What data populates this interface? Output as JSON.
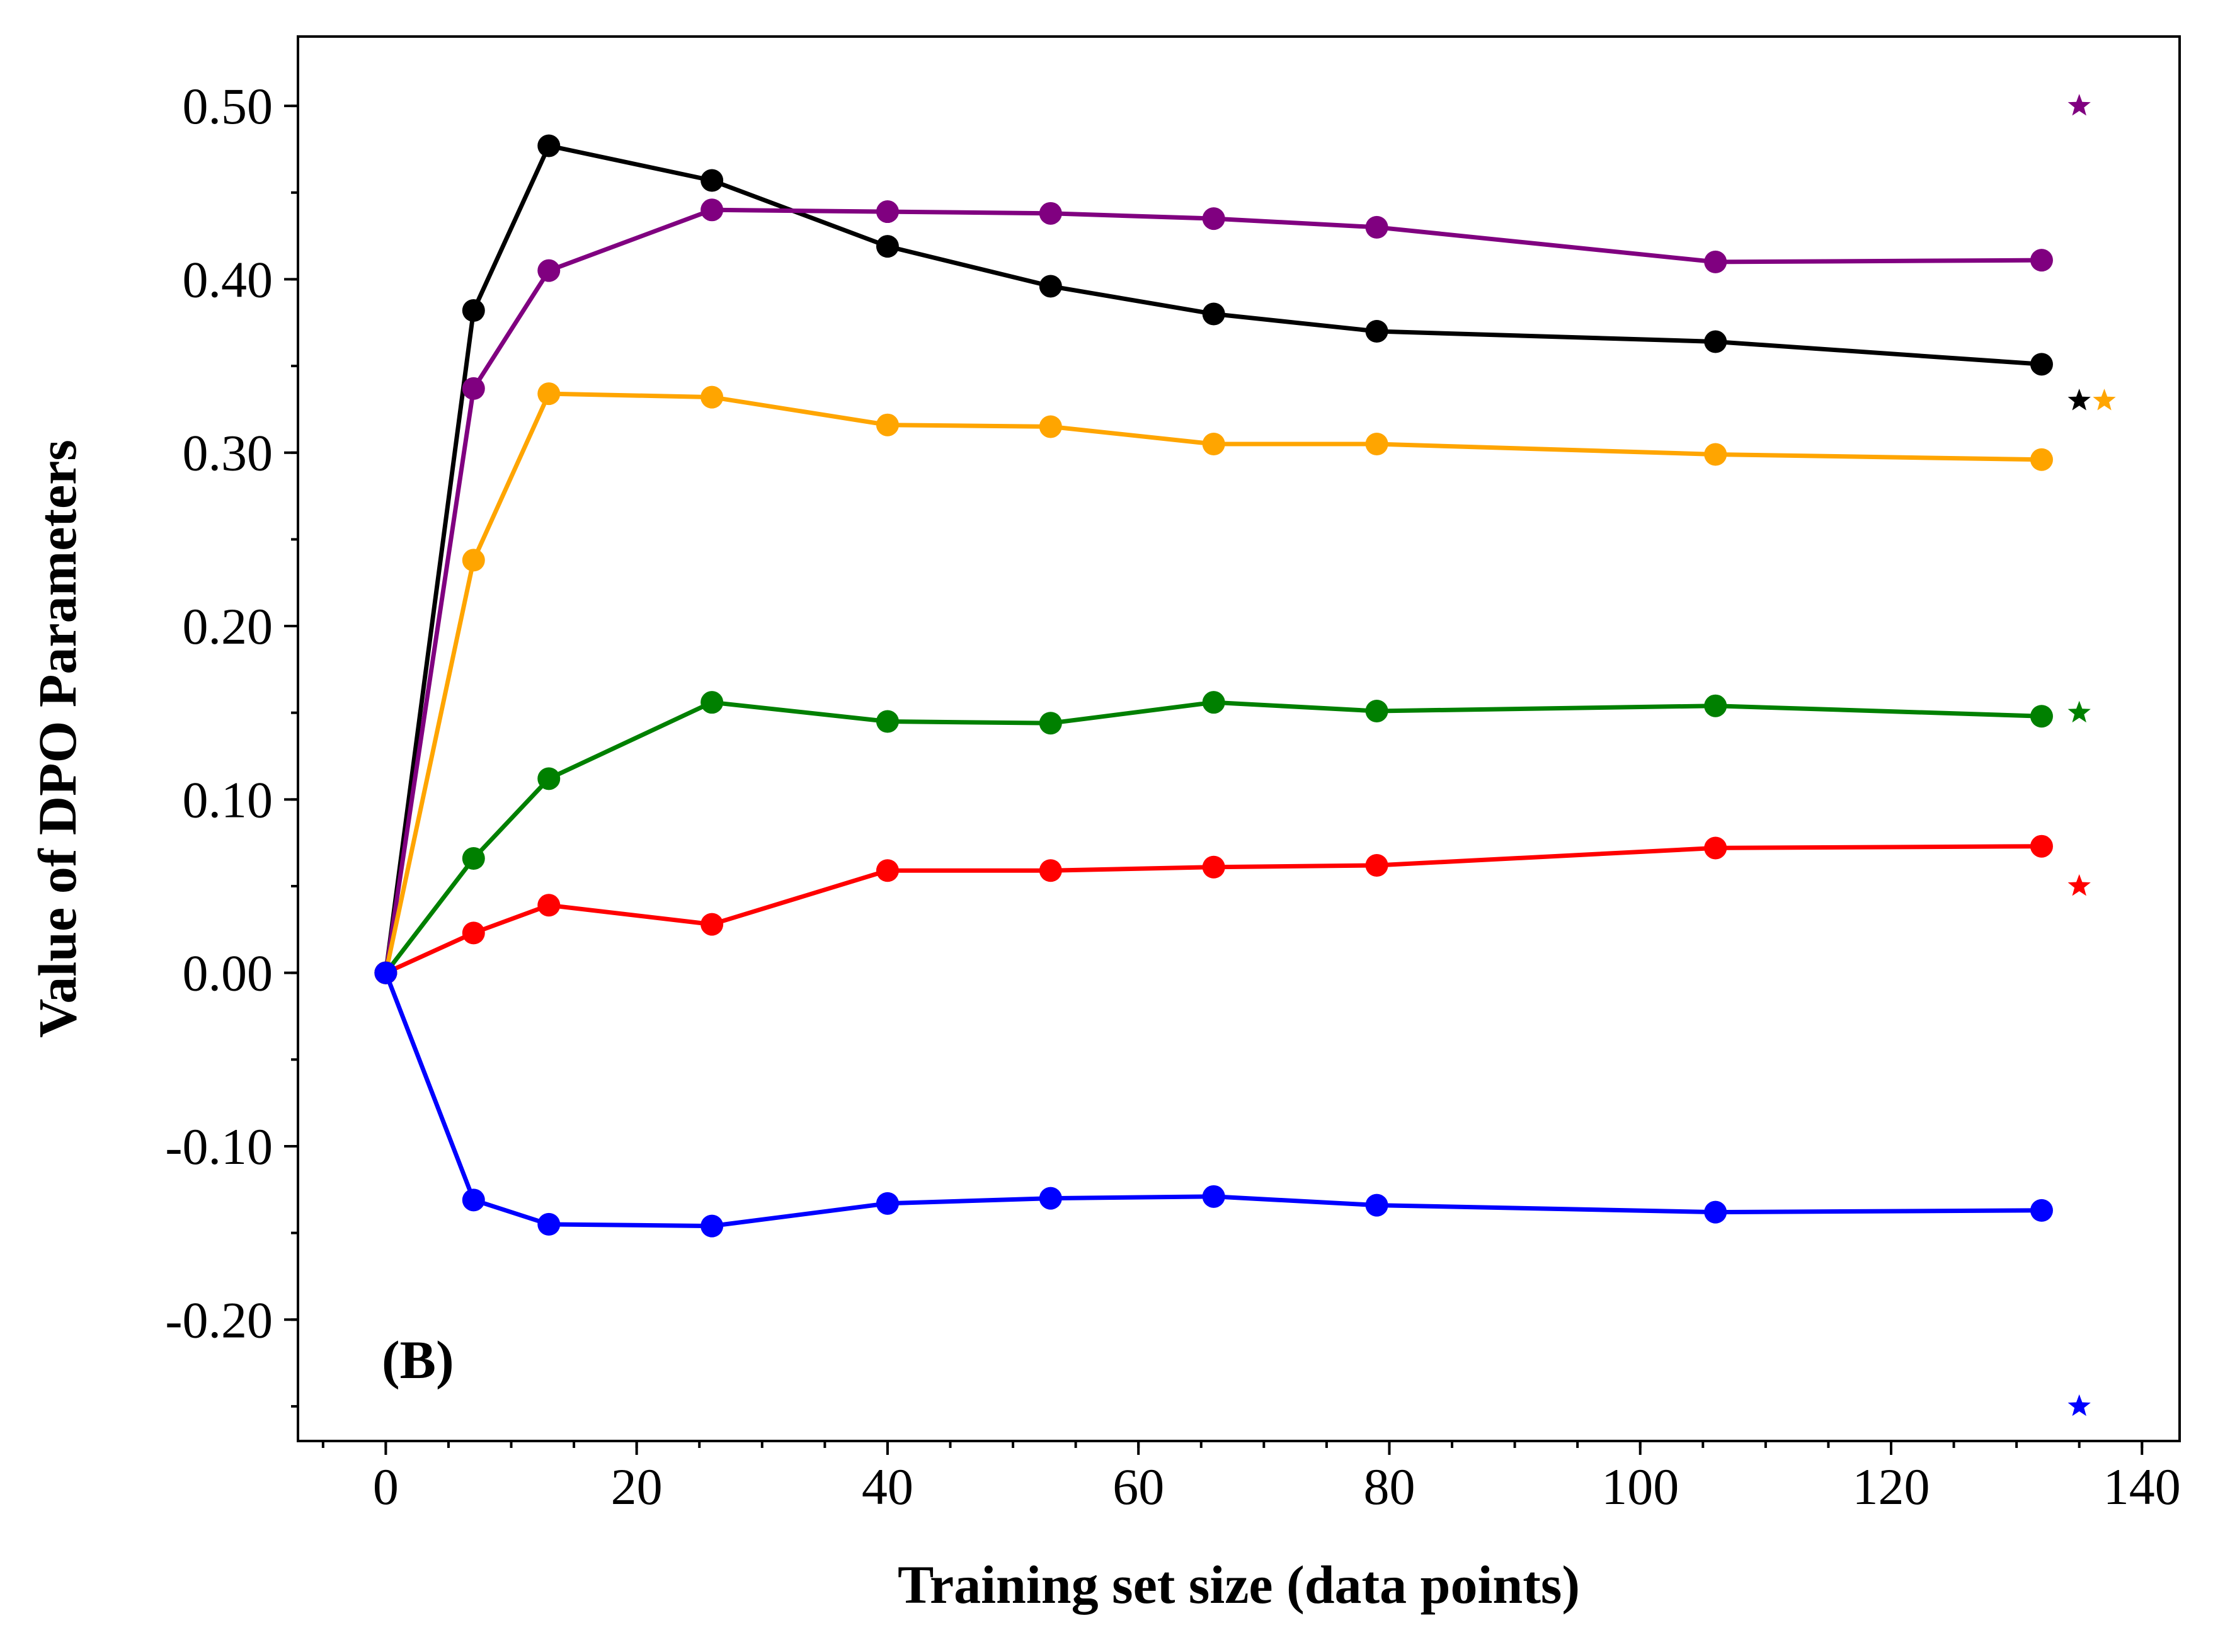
{
  "chart_data": {
    "type": "line",
    "xlabel": "Training set size (data points)",
    "ylabel": "Value of DPO Parameters",
    "annotation": "(B)",
    "xlim": [
      -7,
      143
    ],
    "ylim": [
      -0.27,
      0.54
    ],
    "x_ticks": [
      0,
      20,
      40,
      60,
      80,
      100,
      120,
      140
    ],
    "x_tick_labels": [
      "0",
      "20",
      "40",
      "60",
      "80",
      "100",
      "120",
      "140"
    ],
    "y_ticks": [
      -0.2,
      -0.1,
      0.0,
      0.1,
      0.2,
      0.3,
      0.4,
      0.5
    ],
    "y_tick_labels": [
      "-0.20",
      "-0.10",
      "0.00",
      "0.10",
      "0.20",
      "0.30",
      "0.40",
      "0.50"
    ],
    "x_minor_step": 5,
    "y_minor_step": 0.05,
    "grid": false,
    "legend": "none",
    "x": [
      0,
      7,
      13,
      26,
      40,
      53,
      66,
      79,
      106,
      132
    ],
    "series": [
      {
        "color": "#000000",
        "values": [
          0.0,
          0.382,
          0.477,
          0.457,
          0.419,
          0.396,
          0.38,
          0.37,
          0.364,
          0.351
        ],
        "target": {
          "x": 135,
          "y": 0.33
        }
      },
      {
        "color": "#800080",
        "values": [
          0.0,
          0.337,
          0.405,
          0.44,
          0.439,
          0.438,
          0.435,
          0.43,
          0.41,
          0.411
        ],
        "target": {
          "x": 135,
          "y": 0.5
        }
      },
      {
        "color": "#FFA500",
        "values": [
          0.0,
          0.238,
          0.334,
          0.332,
          0.316,
          0.315,
          0.305,
          0.305,
          0.299,
          0.296
        ],
        "target": {
          "x": 137,
          "y": 0.33
        }
      },
      {
        "color": "#008000",
        "values": [
          0.0,
          0.066,
          0.112,
          0.156,
          0.145,
          0.144,
          0.156,
          0.151,
          0.154,
          0.148
        ],
        "target": {
          "x": 135,
          "y": 0.15
        }
      },
      {
        "color": "#FF0000",
        "values": [
          0.0,
          0.023,
          0.039,
          0.028,
          0.059,
          0.059,
          0.061,
          0.062,
          0.072,
          0.073
        ],
        "target": {
          "x": 135,
          "y": 0.05
        }
      },
      {
        "color": "#0000FF",
        "values": [
          0.0,
          -0.131,
          -0.145,
          -0.146,
          -0.133,
          -0.13,
          -0.129,
          -0.134,
          -0.138,
          -0.137
        ],
        "target": {
          "x": 135,
          "y": -0.25
        }
      }
    ]
  }
}
